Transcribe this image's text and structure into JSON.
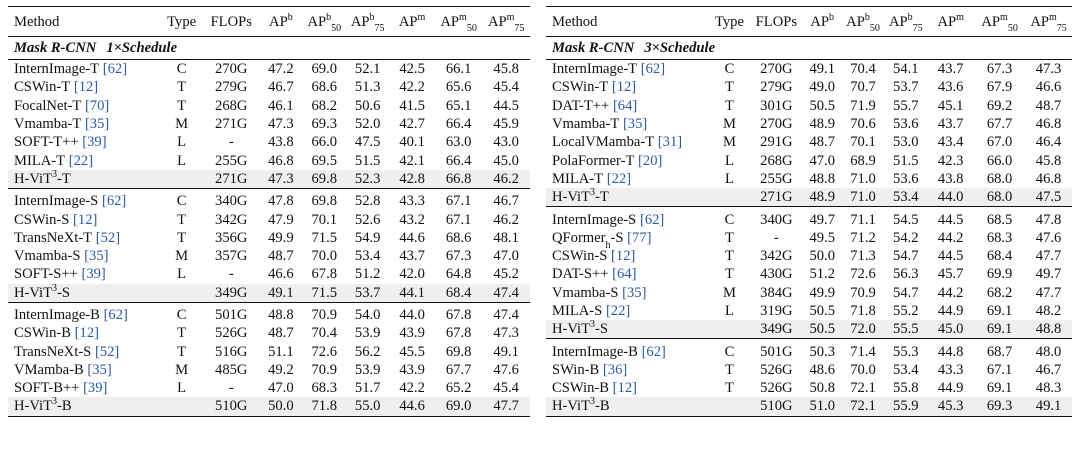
{
  "headers": {
    "method": "Method",
    "type": "Type",
    "flops": "FLOPs",
    "ap_base": "AP",
    "ap_b_sup": "b",
    "ap50b_sup": "b",
    "ap50b_sub": "50",
    "ap75b_sup": "b",
    "ap75b_sub": "75",
    "apm_sup": "m",
    "ap50m_sup": "m",
    "ap50m_sub": "50",
    "ap75m_sup": "m",
    "ap75m_sub": "75"
  },
  "left": {
    "section_name": "Mask R-CNN",
    "schedule": "1×Schedule",
    "groups": [
      {
        "rows": [
          {
            "name": "InternImage-T",
            "cite": "[62]",
            "type": "C",
            "flops": "270G",
            "v": [
              "47.2",
              "69.0",
              "52.1",
              "42.5",
              "66.1",
              "45.8"
            ]
          },
          {
            "name": "CSWin-T",
            "cite": "[12]",
            "type": "T",
            "flops": "279G",
            "v": [
              "46.7",
              "68.6",
              "51.3",
              "42.2",
              "65.6",
              "45.4"
            ]
          },
          {
            "name": "FocalNet-T",
            "cite": "[70]",
            "type": "T",
            "flops": "268G",
            "v": [
              "46.1",
              "68.2",
              "50.6",
              "41.5",
              "65.1",
              "44.5"
            ]
          },
          {
            "name": "Vmamba-T",
            "cite": "[35]",
            "type": "M",
            "flops": "271G",
            "v": [
              "47.3",
              "69.3",
              "52.0",
              "42.7",
              "66.4",
              "45.9"
            ]
          },
          {
            "name": "SOFT-T++",
            "cite": "[39]",
            "type": "L",
            "flops": "-",
            "v": [
              "43.8",
              "66.0",
              "47.5",
              "40.1",
              "63.0",
              "43.0"
            ]
          },
          {
            "name": "MILA-T",
            "cite": "[22]",
            "type": "L",
            "flops": "255G",
            "v": [
              "46.8",
              "69.5",
              "51.5",
              "42.1",
              "66.4",
              "45.0"
            ]
          },
          {
            "name": "H-ViT",
            "sup": "3",
            "suffix": "-T",
            "cite": "",
            "type": "",
            "flops": "271G",
            "v": [
              "47.3",
              "69.8",
              "52.3",
              "42.8",
              "66.8",
              "46.2"
            ],
            "hl": true
          }
        ]
      },
      {
        "rows": [
          {
            "name": "InternImage-S",
            "cite": "[62]",
            "type": "C",
            "flops": "340G",
            "v": [
              "47.8",
              "69.8",
              "52.8",
              "43.3",
              "67.1",
              "46.7"
            ]
          },
          {
            "name": "CSWin-S",
            "cite": "[12]",
            "type": "T",
            "flops": "342G",
            "v": [
              "47.9",
              "70.1",
              "52.6",
              "43.2",
              "67.1",
              "46.2"
            ]
          },
          {
            "name": "TransNeXt-T",
            "cite": "[52]",
            "type": "T",
            "flops": "356G",
            "v": [
              "49.9",
              "71.5",
              "54.9",
              "44.6",
              "68.6",
              "48.1"
            ]
          },
          {
            "name": "Vmamba-S",
            "cite": "[35]",
            "type": "M",
            "flops": "357G",
            "v": [
              "48.7",
              "70.0",
              "53.4",
              "43.7",
              "67.3",
              "47.0"
            ]
          },
          {
            "name": "SOFT-S++",
            "cite": "[39]",
            "type": "L",
            "flops": "-",
            "v": [
              "46.6",
              "67.8",
              "51.2",
              "42.0",
              "64.8",
              "45.2"
            ]
          },
          {
            "name": "H-ViT",
            "sup": "3",
            "suffix": "-S",
            "cite": "",
            "type": "",
            "flops": "349G",
            "v": [
              "49.1",
              "71.5",
              "53.7",
              "44.1",
              "68.4",
              "47.4"
            ],
            "hl": true
          }
        ]
      },
      {
        "rows": [
          {
            "name": "InternImage-B",
            "cite": "[62]",
            "type": "C",
            "flops": "501G",
            "v": [
              "48.8",
              "70.9",
              "54.0",
              "44.0",
              "67.8",
              "47.4"
            ]
          },
          {
            "name": "CSWin-B",
            "cite": "[12]",
            "type": "T",
            "flops": "526G",
            "v": [
              "48.7",
              "70.4",
              "53.9",
              "43.9",
              "67.8",
              "47.3"
            ]
          },
          {
            "name": "TransNeXt-S",
            "cite": "[52]",
            "type": "T",
            "flops": "516G",
            "v": [
              "51.1",
              "72.6",
              "56.2",
              "45.5",
              "69.8",
              "49.1"
            ]
          },
          {
            "name": "VMamba-B",
            "cite": "[35]",
            "type": "M",
            "flops": "485G",
            "v": [
              "49.2",
              "70.9",
              "53.9",
              "43.9",
              "67.7",
              "47.6"
            ]
          },
          {
            "name": "SOFT-B++",
            "cite": "[39]",
            "type": "L",
            "flops": "-",
            "v": [
              "47.0",
              "68.3",
              "51.7",
              "42.2",
              "65.2",
              "45.4"
            ]
          },
          {
            "name": "H-ViT",
            "sup": "3",
            "suffix": "-B",
            "cite": "",
            "type": "",
            "flops": "510G",
            "v": [
              "50.0",
              "71.8",
              "55.0",
              "44.6",
              "69.0",
              "47.7"
            ],
            "hl": true
          }
        ]
      }
    ]
  },
  "right": {
    "section_name": "Mask R-CNN",
    "schedule": "3×Schedule",
    "groups": [
      {
        "rows": [
          {
            "name": "InternImage-T",
            "cite": "[62]",
            "type": "C",
            "flops": "270G",
            "v": [
              "49.1",
              "70.4",
              "54.1",
              "43.7",
              "67.3",
              "47.3"
            ]
          },
          {
            "name": "CSWin-T",
            "cite": "[12]",
            "type": "T",
            "flops": "279G",
            "v": [
              "49.0",
              "70.7",
              "53.7",
              "43.6",
              "67.9",
              "46.6"
            ]
          },
          {
            "name": "DAT-T++",
            "cite": "[64]",
            "type": "T",
            "flops": "301G",
            "v": [
              "50.5",
              "71.9",
              "55.7",
              "45.1",
              "69.2",
              "48.7"
            ]
          },
          {
            "name": "Vmamba-T",
            "cite": "[35]",
            "type": "M",
            "flops": "270G",
            "v": [
              "48.9",
              "70.6",
              "53.6",
              "43.7",
              "67.7",
              "46.8"
            ]
          },
          {
            "name": "LocalVMamba-T",
            "cite": "[31]",
            "type": "M",
            "flops": "291G",
            "v": [
              "48.7",
              "70.1",
              "53.0",
              "43.4",
              "67.0",
              "46.4"
            ]
          },
          {
            "name": "PolaFormer-T",
            "cite": "[20]",
            "type": "L",
            "flops": "268G",
            "v": [
              "47.0",
              "68.9",
              "51.5",
              "42.3",
              "66.0",
              "45.8"
            ]
          },
          {
            "name": "MILA-T",
            "cite": "[22]",
            "type": "L",
            "flops": "255G",
            "v": [
              "48.8",
              "71.0",
              "53.6",
              "43.8",
              "68.0",
              "46.8"
            ]
          },
          {
            "name": "H-ViT",
            "sup": "3",
            "suffix": "-T",
            "cite": "",
            "type": "",
            "flops": "271G",
            "v": [
              "48.9",
              "71.0",
              "53.4",
              "44.0",
              "68.0",
              "47.5"
            ],
            "hl": true
          }
        ]
      },
      {
        "rows": [
          {
            "name": "InternImage-S",
            "cite": "[62]",
            "type": "C",
            "flops": "340G",
            "v": [
              "49.7",
              "71.1",
              "54.5",
              "44.5",
              "68.5",
              "47.8"
            ]
          },
          {
            "name": "QFormer",
            "sub": "h",
            "suffix": "-S",
            "cite": "[77]",
            "type": "T",
            "flops": "-",
            "v": [
              "49.5",
              "71.2",
              "54.2",
              "44.2",
              "68.3",
              "47.6"
            ]
          },
          {
            "name": "CSWin-S",
            "cite": "[12]",
            "type": "T",
            "flops": "342G",
            "v": [
              "50.0",
              "71.3",
              "54.7",
              "44.5",
              "68.4",
              "47.7"
            ]
          },
          {
            "name": "DAT-S++",
            "cite": "[64]",
            "type": "T",
            "flops": "430G",
            "v": [
              "51.2",
              "72.6",
              "56.3",
              "45.7",
              "69.9",
              "49.7"
            ]
          },
          {
            "name": "Vmamba-S",
            "cite": "[35]",
            "type": "M",
            "flops": "384G",
            "v": [
              "49.9",
              "70.9",
              "54.7",
              "44.2",
              "68.2",
              "47.7"
            ]
          },
          {
            "name": "MILA-S",
            "cite": "[22]",
            "type": "L",
            "flops": "319G",
            "v": [
              "50.5",
              "71.8",
              "55.2",
              "44.9",
              "69.1",
              "48.2"
            ]
          },
          {
            "name": "H-ViT",
            "sup": "3",
            "suffix": "-S",
            "cite": "",
            "type": "",
            "flops": "349G",
            "v": [
              "50.5",
              "72.0",
              "55.5",
              "45.0",
              "69.1",
              "48.8"
            ],
            "hl": true
          }
        ]
      },
      {
        "rows": [
          {
            "name": "InternImage-B",
            "cite": "[62]",
            "type": "C",
            "flops": "501G",
            "v": [
              "50.3",
              "71.4",
              "55.3",
              "44.8",
              "68.7",
              "48.0"
            ]
          },
          {
            "name": "SWin-B",
            "cite": "[36]",
            "type": "T",
            "flops": "526G",
            "v": [
              "48.6",
              "70.0",
              "53.4",
              "43.3",
              "67.1",
              "46.7"
            ]
          },
          {
            "name": "CSWin-B",
            "cite": "[12]",
            "type": "T",
            "flops": "526G",
            "v": [
              "50.8",
              "72.1",
              "55.8",
              "44.9",
              "69.1",
              "48.3"
            ]
          },
          {
            "name": "H-ViT",
            "sup": "3",
            "suffix": "-B",
            "cite": "",
            "type": "",
            "flops": "510G",
            "v": [
              "51.0",
              "72.1",
              "55.9",
              "45.3",
              "69.3",
              "49.1"
            ],
            "hl": true
          }
        ]
      }
    ]
  }
}
